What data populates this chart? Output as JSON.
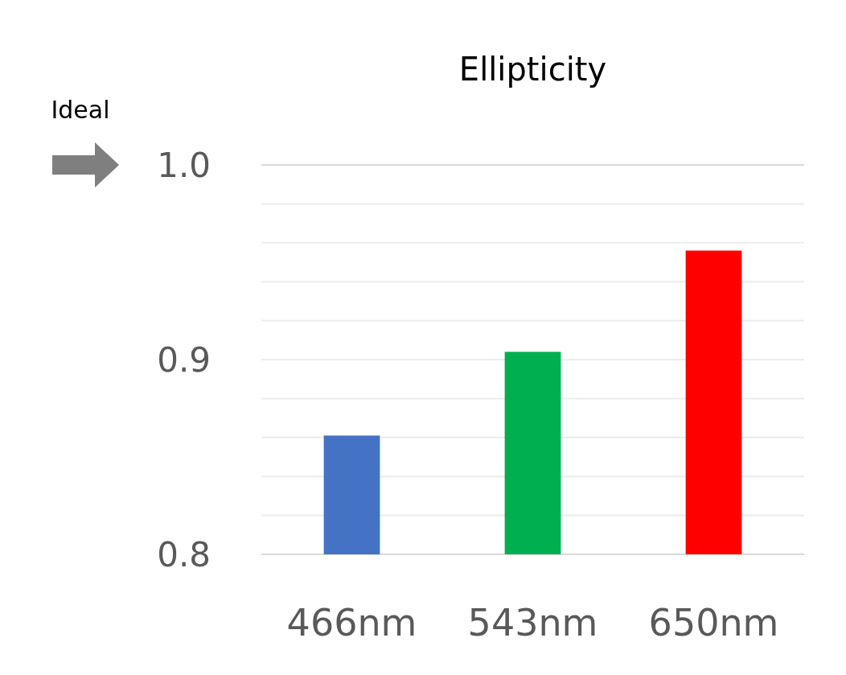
{
  "chart_data": {
    "type": "bar",
    "title": "Ellipticity",
    "categories": [
      "466nm",
      "543nm",
      "650nm"
    ],
    "series": [
      {
        "colors": [
          "#4472c4",
          "#00b050",
          "#ff0000"
        ],
        "values": [
          0.861,
          0.904,
          0.956
        ]
      }
    ],
    "ylim": [
      0.8,
      1.0
    ],
    "yticks": [
      {
        "value": 0.8,
        "label": "0.8"
      },
      {
        "value": 0.82,
        "label": null
      },
      {
        "value": 0.84,
        "label": null
      },
      {
        "value": 0.86,
        "label": null
      },
      {
        "value": 0.88,
        "label": null
      },
      {
        "value": 0.9,
        "label": "0.9"
      },
      {
        "value": 0.92,
        "label": null
      },
      {
        "value": 0.94,
        "label": null
      },
      {
        "value": 0.96,
        "label": null
      },
      {
        "value": 0.98,
        "label": null
      },
      {
        "value": 1.0,
        "label": "1.0"
      }
    ],
    "grid": "y",
    "annotations": [
      "Ideal"
    ]
  }
}
